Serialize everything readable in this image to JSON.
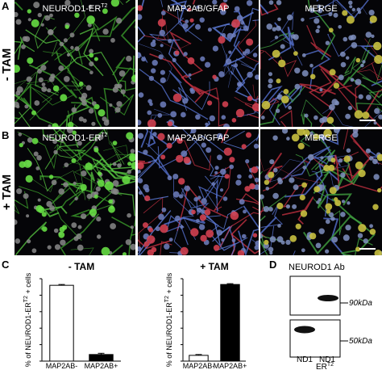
{
  "panels": [
    {
      "letter": "A",
      "condition": "- TAM",
      "images": [
        {
          "label": "NEUROD1-ER",
          "sup": "T2"
        },
        {
          "label": "MAP2AB/GFAP"
        },
        {
          "label": "MERGE"
        }
      ]
    },
    {
      "letter": "B",
      "condition": "+ TAM",
      "images": [
        {
          "label": "NEUROD1-ER",
          "sup": "T2"
        },
        {
          "label": "MAP2AB/GFAP"
        },
        {
          "label": "MERGE"
        }
      ]
    }
  ],
  "chart_letter": "C",
  "chart_data": [
    {
      "type": "bar",
      "title": "- TAM",
      "y_label": "% of NEUROD1-ER",
      "y_label_sup": "T2",
      "y_label_end": " + cells",
      "categories": [
        "MAP2AB-",
        "MAP2AB+"
      ],
      "values": [
        92,
        8
      ],
      "errors": [
        1,
        1.5
      ],
      "colors": [
        "#ffffff",
        "#000000"
      ],
      "ylim": [
        0,
        100
      ],
      "yticks": [
        0,
        20,
        40,
        60,
        80,
        100
      ]
    },
    {
      "type": "bar",
      "title": "+ TAM",
      "y_label": "% of NEUROD1-ER",
      "y_label_sup": "T2",
      "y_label_end": " + cells",
      "categories": [
        "MAP2AB-",
        "MAP2AB+"
      ],
      "values": [
        7,
        93
      ],
      "errors": [
        1,
        1
      ],
      "colors": [
        "#ffffff",
        "#000000"
      ],
      "ylim": [
        0,
        100
      ],
      "yticks": [
        0,
        20,
        40,
        60,
        80,
        100
      ]
    }
  ],
  "blot": {
    "letter": "D",
    "title": "NEUROD1 Ab",
    "lanes": [
      {
        "label": "ND1"
      },
      {
        "label": "ND1",
        "label2": "ER",
        "sup": "T2"
      }
    ],
    "markers": [
      "90kDa",
      "50kDa"
    ]
  }
}
